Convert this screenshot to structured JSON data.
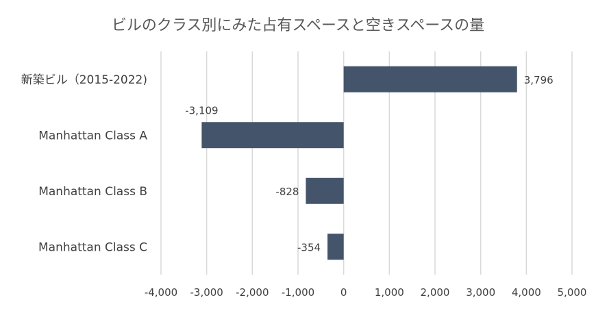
{
  "chart_data": {
    "type": "bar",
    "orientation": "horizontal",
    "title": "ビルのクラス別にみた占有スペースと空きスペースの量",
    "categories": [
      "新築ビル（2015-2022)",
      "Manhattan Class A",
      "Manhattan Class B",
      "Manhattan Class C"
    ],
    "values": [
      3796,
      -3109,
      -828,
      -354
    ],
    "data_labels": [
      "3,796",
      "-3,109",
      "-828",
      "-354"
    ],
    "x_ticks": [
      -4000,
      -3000,
      -2000,
      -1000,
      0,
      1000,
      2000,
      3000,
      4000,
      5000
    ],
    "x_tick_labels": [
      "-4,000",
      "-3,000",
      "-2,000",
      "-1,000",
      "0",
      "1,000",
      "2,000",
      "3,000",
      "4,000",
      "5,000"
    ],
    "xlim": [
      -4000,
      5000
    ],
    "grid": true,
    "legend": "none",
    "colors": {
      "bar": "#44546a",
      "grid": "#d9d9d9",
      "text": "#404040",
      "title": "#595959"
    }
  }
}
